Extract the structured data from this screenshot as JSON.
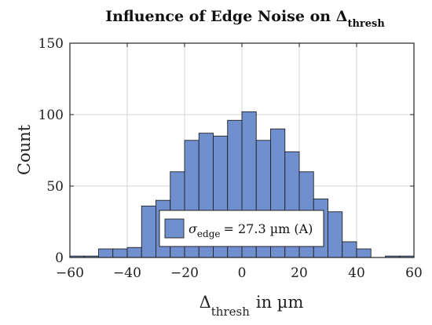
{
  "chart_data": {
    "type": "bar",
    "title": "Influence of Edge Noise on Δ",
    "title_subscript": "thresh",
    "xlabel": "Δ",
    "xlabel_subscript": "thresh",
    "xlabel_suffix": "in µm",
    "ylabel": "Count",
    "xlim": [
      -60,
      60
    ],
    "ylim": [
      0,
      150
    ],
    "xticks": [
      -60,
      -40,
      -20,
      0,
      20,
      40,
      60
    ],
    "yticks": [
      0,
      50,
      100,
      150
    ],
    "grid": true,
    "bin_edges": [
      -60,
      -55,
      -50,
      -45,
      -40,
      -35,
      -30,
      -25,
      -20,
      -15,
      -10,
      -5,
      0,
      5,
      10,
      15,
      20,
      25,
      30,
      35,
      40,
      45,
      50,
      55,
      60
    ],
    "values": [
      1,
      1,
      6,
      6,
      7,
      36,
      40,
      60,
      82,
      87,
      85,
      96,
      102,
      82,
      90,
      74,
      60,
      41,
      32,
      11,
      6,
      0,
      1,
      1
    ],
    "bar_color": "#6f8fcf",
    "legend": {
      "position": "bottom-center",
      "symbol": "σ",
      "subscript": "edge",
      "text": "= 27.3 µm (A)"
    }
  }
}
